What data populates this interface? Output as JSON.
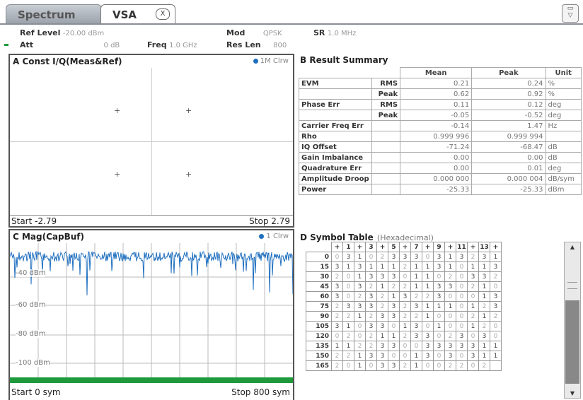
{
  "tabs": {
    "spectrum": "Spectrum",
    "vsa": "VSA",
    "close_glyph": "X"
  },
  "header": {
    "ref_level_label": "Ref Level",
    "ref_level_value": "-20.00 dBm",
    "mod_label": "Mod",
    "mod_value": "QPSK",
    "sr_label": "SR",
    "sr_value": "1.0 MHz",
    "att_label": "Att",
    "att_value": "0 dB",
    "freq_label": "Freq",
    "freq_value": "1.0 GHz",
    "res_len_label": "Res Len",
    "res_len_value": "800"
  },
  "panel_a": {
    "title": "A Const I/Q(Meas&Ref)",
    "legend": "1M Clrw",
    "start": "Start -2.79",
    "stop": "Stop 2.79"
  },
  "panel_b": {
    "title": "B Result Summary",
    "col_mean": "Mean",
    "col_peak": "Peak",
    "col_unit": "Unit",
    "rows": [
      {
        "label": "EVM",
        "sub": "RMS",
        "mean": "0.21",
        "peak": "0.24",
        "unit": "%"
      },
      {
        "label": "",
        "sub": "Peak",
        "mean": "0.62",
        "peak": "0.92",
        "unit": "%"
      },
      {
        "label": "Phase Err",
        "sub": "RMS",
        "mean": "0.11",
        "peak": "0.12",
        "unit": "deg"
      },
      {
        "label": "",
        "sub": "Peak",
        "mean": "-0.05",
        "peak": "-0.52",
        "unit": "deg"
      },
      {
        "label": "Carrier Freq Err",
        "sub": "",
        "mean": "-0.14",
        "peak": "1.47",
        "unit": "Hz"
      },
      {
        "label": "Rho",
        "sub": "",
        "mean": "0.999 996",
        "peak": "0.999 994",
        "unit": ""
      },
      {
        "label": "IQ Offset",
        "sub": "",
        "mean": "-71.24",
        "peak": "-68.47",
        "unit": "dB"
      },
      {
        "label": "Gain Imbalance",
        "sub": "",
        "mean": "0.00",
        "peak": "0.00",
        "unit": "dB"
      },
      {
        "label": "Quadrature Err",
        "sub": "",
        "mean": "0.00",
        "peak": "0.01",
        "unit": "deg"
      },
      {
        "label": "Amplitude Droop",
        "sub": "",
        "mean": "0.000 000",
        "peak": "0.000 004",
        "unit": "dB/sym"
      },
      {
        "label": "Power",
        "sub": "",
        "mean": "-25.33",
        "peak": "-25.33",
        "unit": "dBm"
      }
    ]
  },
  "panel_c": {
    "title": "C Mag(CapBuf)",
    "legend": "1 Clrw",
    "y_labels": [
      "-40 dBm",
      "-60 dBm",
      "-80 dBm",
      "-100 dBm"
    ],
    "start": "Start 0 sym",
    "stop": "Stop 800 sym",
    "trace_color": "#1f6fbf",
    "bar_color": "#1e9a3c"
  },
  "panel_d": {
    "title": "D Symbol Table",
    "subtitle": "(Hexadecimal)",
    "col_headers": [
      "+",
      "1",
      "+",
      "3",
      "+",
      "5",
      "+",
      "7",
      "+",
      "9",
      "+",
      "11",
      "+",
      "13",
      "+"
    ],
    "row_headers": [
      "0",
      "15",
      "30",
      "45",
      "60",
      "75",
      "90",
      "105",
      "120",
      "135",
      "150",
      "165"
    ],
    "rows": [
      [
        "0",
        "3",
        "1",
        "0",
        "2",
        "3",
        "3",
        "3",
        "0",
        "3",
        "1",
        "3",
        "2",
        "3",
        "1"
      ],
      [
        "3",
        "1",
        "3",
        "1",
        "1",
        "1",
        "2",
        "1",
        "1",
        "3",
        "1",
        "0",
        "1",
        "1",
        "3"
      ],
      [
        "2",
        "0",
        "1",
        "3",
        "3",
        "3",
        "0",
        "1",
        "1",
        "0",
        "2",
        "0",
        "3",
        "3",
        "2"
      ],
      [
        "3",
        "0",
        "3",
        "2",
        "1",
        "2",
        "2",
        "1",
        "1",
        "3",
        "3",
        "0",
        "2",
        "1",
        "0"
      ],
      [
        "3",
        "0",
        "2",
        "3",
        "2",
        "1",
        "3",
        "2",
        "2",
        "3",
        "0",
        "0",
        "0",
        "1",
        "3"
      ],
      [
        "2",
        "3",
        "3",
        "3",
        "2",
        "3",
        "2",
        "3",
        "1",
        "1",
        "1",
        "0",
        "1",
        "2",
        "3"
      ],
      [
        "2",
        "2",
        "1",
        "2",
        "3",
        "3",
        "2",
        "2",
        "1",
        "0",
        "0",
        "0",
        "2",
        "1",
        "2"
      ],
      [
        "3",
        "1",
        "0",
        "3",
        "3",
        "0",
        "1",
        "3",
        "0",
        "1",
        "0",
        "0",
        "1",
        "2",
        "0"
      ],
      [
        "0",
        "2",
        "0",
        "2",
        "1",
        "1",
        "2",
        "3",
        "3",
        "0",
        "2",
        "3",
        "0",
        "3",
        "0"
      ],
      [
        "1",
        "1",
        "2",
        "2",
        "3",
        "3",
        "0",
        "0",
        "3",
        "3",
        "3",
        "3",
        "3",
        "1",
        "1"
      ],
      [
        "2",
        "2",
        "1",
        "3",
        "3",
        "0",
        "0",
        "1",
        "3",
        "0",
        "3",
        "0",
        "3",
        "1",
        "1"
      ],
      [
        "2",
        "0",
        "1",
        "0",
        "3",
        "3",
        "2",
        "1",
        "0",
        "0",
        "2",
        "2",
        "0",
        "2",
        ""
      ]
    ]
  },
  "colors": {
    "accent_blue": "#1f6fbf",
    "border": "#555555"
  }
}
